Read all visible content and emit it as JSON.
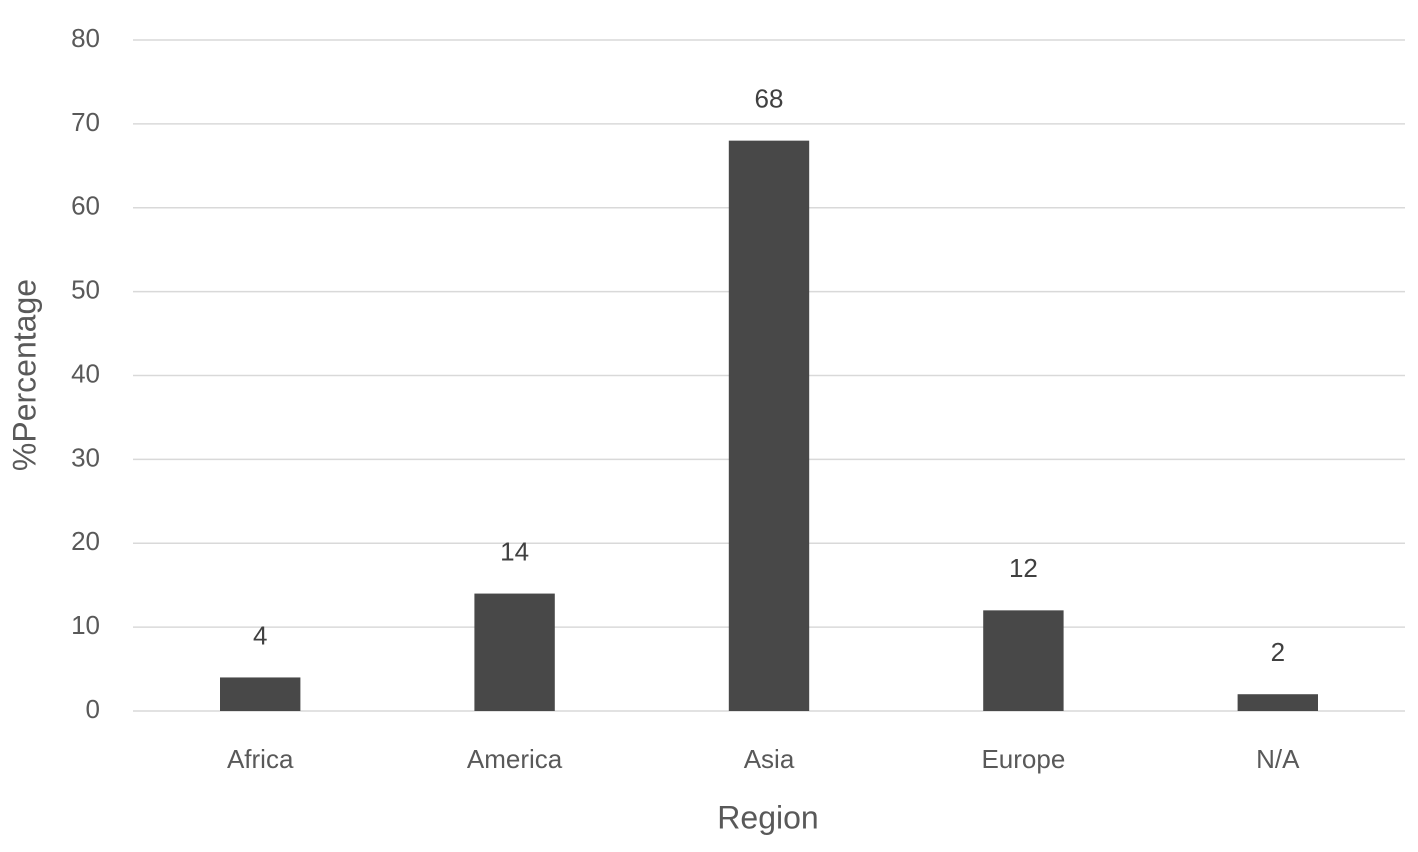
{
  "chart_data": {
    "type": "bar",
    "x_label": "Region",
    "y_label": "%Percentage",
    "categories": [
      "Africa",
      "America",
      "Asia",
      "Europe",
      "N/A"
    ],
    "values": [
      4,
      14,
      68,
      12,
      2
    ],
    "color": "#484848",
    "ylim": [
      0,
      80
    ],
    "yticks": [
      0,
      10,
      20,
      30,
      40,
      50,
      60,
      70,
      80
    ],
    "grid": true
  }
}
